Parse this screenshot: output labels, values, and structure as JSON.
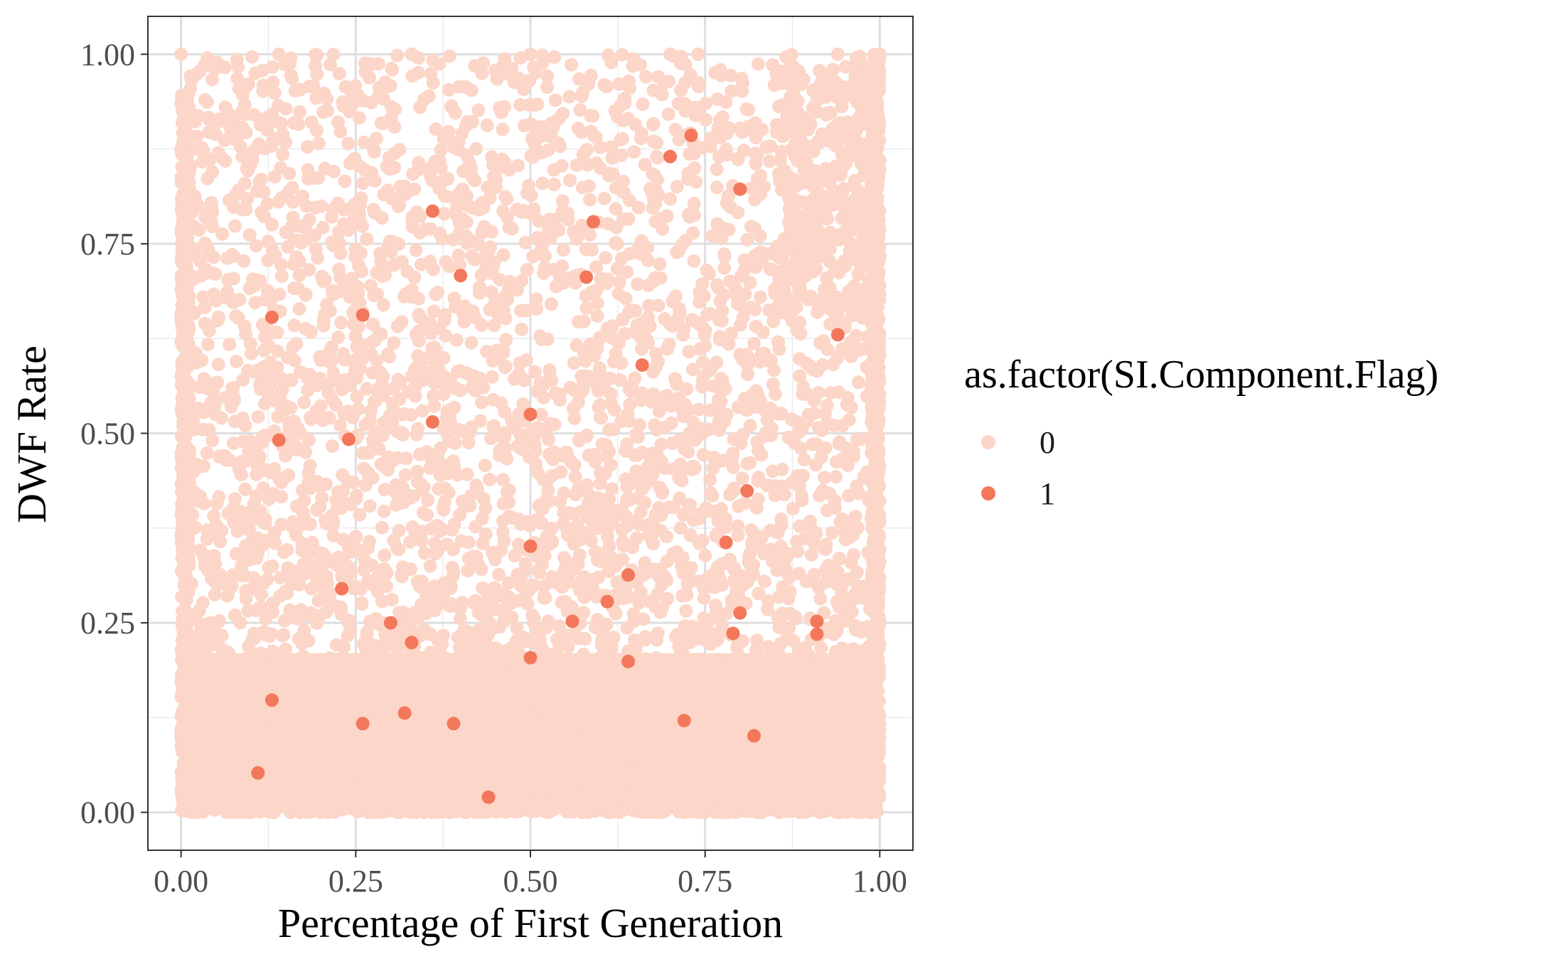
{
  "chart_data": {
    "type": "scatter",
    "xlabel": "Percentage of First Generation",
    "ylabel": "DWF Rate",
    "xlim": [
      -0.0475,
      1.0475
    ],
    "ylim": [
      -0.05,
      1.05
    ],
    "x_ticks": [
      0.0,
      0.25,
      0.5,
      0.75,
      1.0
    ],
    "x_tick_labels": [
      "0.00",
      "0.25",
      "0.50",
      "0.75",
      "1.00"
    ],
    "y_ticks": [
      0.0,
      0.25,
      0.5,
      0.75,
      1.0
    ],
    "y_tick_labels": [
      "0.00",
      "0.25",
      "0.50",
      "0.75",
      "1.00"
    ],
    "grid": true,
    "legend": {
      "title": "as.factor(SI.Component.Flag)",
      "position": "right",
      "entries": [
        "0",
        "1"
      ]
    },
    "colors": {
      "0": "#fcd6c8",
      "1": "#f3785b"
    },
    "series": [
      {
        "name": "1",
        "points": [
          [
            0.73,
            0.893
          ],
          [
            0.7,
            0.865
          ],
          [
            0.8,
            0.822
          ],
          [
            0.36,
            0.793
          ],
          [
            0.59,
            0.779
          ],
          [
            0.4,
            0.708
          ],
          [
            0.58,
            0.706
          ],
          [
            0.26,
            0.656
          ],
          [
            0.13,
            0.653
          ],
          [
            0.94,
            0.63
          ],
          [
            0.66,
            0.59
          ],
          [
            0.5,
            0.525
          ],
          [
            0.36,
            0.515
          ],
          [
            0.14,
            0.491
          ],
          [
            0.24,
            0.492
          ],
          [
            0.81,
            0.424
          ],
          [
            0.78,
            0.356
          ],
          [
            0.5,
            0.351
          ],
          [
            0.64,
            0.313
          ],
          [
            0.23,
            0.295
          ],
          [
            0.61,
            0.278
          ],
          [
            0.8,
            0.263
          ],
          [
            0.56,
            0.252
          ],
          [
            0.91,
            0.252
          ],
          [
            0.3,
            0.25
          ],
          [
            0.79,
            0.236
          ],
          [
            0.91,
            0.235
          ],
          [
            0.33,
            0.224
          ],
          [
            0.5,
            0.204
          ],
          [
            0.64,
            0.199
          ],
          [
            0.13,
            0.148
          ],
          [
            0.32,
            0.131
          ],
          [
            0.72,
            0.121
          ],
          [
            0.26,
            0.117
          ],
          [
            0.39,
            0.117
          ],
          [
            0.82,
            0.101
          ],
          [
            0.11,
            0.052
          ],
          [
            0.44,
            0.02
          ]
        ]
      }
    ]
  }
}
